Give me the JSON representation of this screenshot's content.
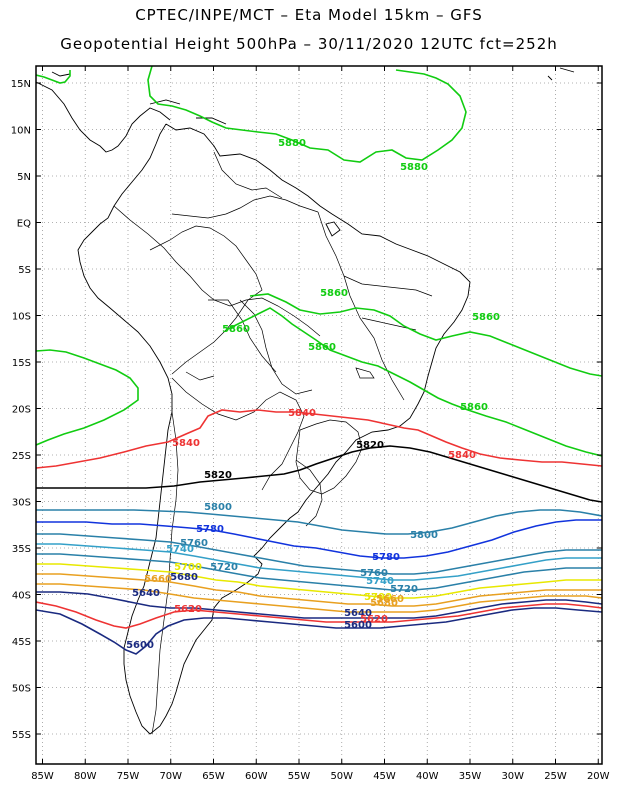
{
  "header": {
    "line1": "CPTEC/INPE/MCT –  Eta Model 15km – GFS",
    "line2": "Geopotential Height 500hPa – 30/11/2020 12UTC fct=252h"
  },
  "map": {
    "lat_labels": [
      "15N",
      "10N",
      "5N",
      "EQ",
      "5S",
      "10S",
      "15S",
      "20S",
      "25S",
      "30S",
      "35S",
      "40S",
      "45S",
      "50S",
      "55S"
    ],
    "lon_labels": [
      "85W",
      "80W",
      "75W",
      "70W",
      "65W",
      "60W",
      "55W",
      "50W",
      "45W",
      "40W",
      "35W",
      "30W",
      "25W",
      "20W"
    ]
  },
  "contours": [
    {
      "value": "5880",
      "color": "#11cc11"
    },
    {
      "value": "5860",
      "color": "#11cc11"
    },
    {
      "value": "5840",
      "color": "#ee3333"
    },
    {
      "value": "5820",
      "color": "#000000"
    },
    {
      "value": "5800",
      "color": "#2a80a8"
    },
    {
      "value": "5780",
      "color": "#1133dd"
    },
    {
      "value": "5760",
      "color": "#2a80a8"
    },
    {
      "value": "5740",
      "color": "#34a0c8"
    },
    {
      "value": "5720",
      "color": "#2a80a8"
    },
    {
      "value": "5700",
      "color": "#e8e800"
    },
    {
      "value": "5680",
      "color": "#e8a020"
    },
    {
      "value": "5660",
      "color": "#e8a020"
    },
    {
      "value": "5640",
      "color": "#1a2a80"
    },
    {
      "value": "5620",
      "color": "#ee3333"
    },
    {
      "value": "5600",
      "color": "#1a2a80"
    }
  ],
  "labels": [
    {
      "text": "5880",
      "color": "#11cc11"
    },
    {
      "text": "5880",
      "color": "#11cc11"
    },
    {
      "text": "5860",
      "color": "#11cc11"
    },
    {
      "text": "5860",
      "color": "#11cc11"
    },
    {
      "text": "5860",
      "color": "#11cc11"
    },
    {
      "text": "5860",
      "color": "#11cc11"
    },
    {
      "text": "5860",
      "color": "#11cc11"
    },
    {
      "text": "5840",
      "color": "#ee3333"
    },
    {
      "text": "5840",
      "color": "#ee3333"
    },
    {
      "text": "5840",
      "color": "#ee3333"
    },
    {
      "text": "5820",
      "color": "#000000"
    },
    {
      "text": "5820",
      "color": "#000000"
    },
    {
      "text": "5800",
      "color": "#2a80a8"
    },
    {
      "text": "5800",
      "color": "#2a80a8"
    },
    {
      "text": "5780",
      "color": "#1133dd"
    },
    {
      "text": "5780",
      "color": "#1133dd"
    },
    {
      "text": "5760",
      "color": "#2a80a8"
    },
    {
      "text": "5760",
      "color": "#2a80a8"
    },
    {
      "text": "5740",
      "color": "#34a0c8"
    },
    {
      "text": "5740",
      "color": "#34a0c8"
    },
    {
      "text": "5720",
      "color": "#2a80a8"
    },
    {
      "text": "5720",
      "color": "#2a80a8"
    },
    {
      "text": "5700",
      "color": "#e8e800"
    },
    {
      "text": "5700",
      "color": "#e8e800"
    },
    {
      "text": "5680",
      "color": "#1a2a80"
    },
    {
      "text": "5680",
      "color": "#e8a020"
    },
    {
      "text": "5660",
      "color": "#e8a020"
    },
    {
      "text": "5660",
      "color": "#e8a020"
    },
    {
      "text": "5640",
      "color": "#1a2a80"
    },
    {
      "text": "5640",
      "color": "#1a2a80"
    },
    {
      "text": "5620",
      "color": "#ee3333"
    },
    {
      "text": "5620",
      "color": "#ee3333"
    },
    {
      "text": "5600",
      "color": "#1a2a80"
    },
    {
      "text": "5600",
      "color": "#1a2a80"
    }
  ]
}
